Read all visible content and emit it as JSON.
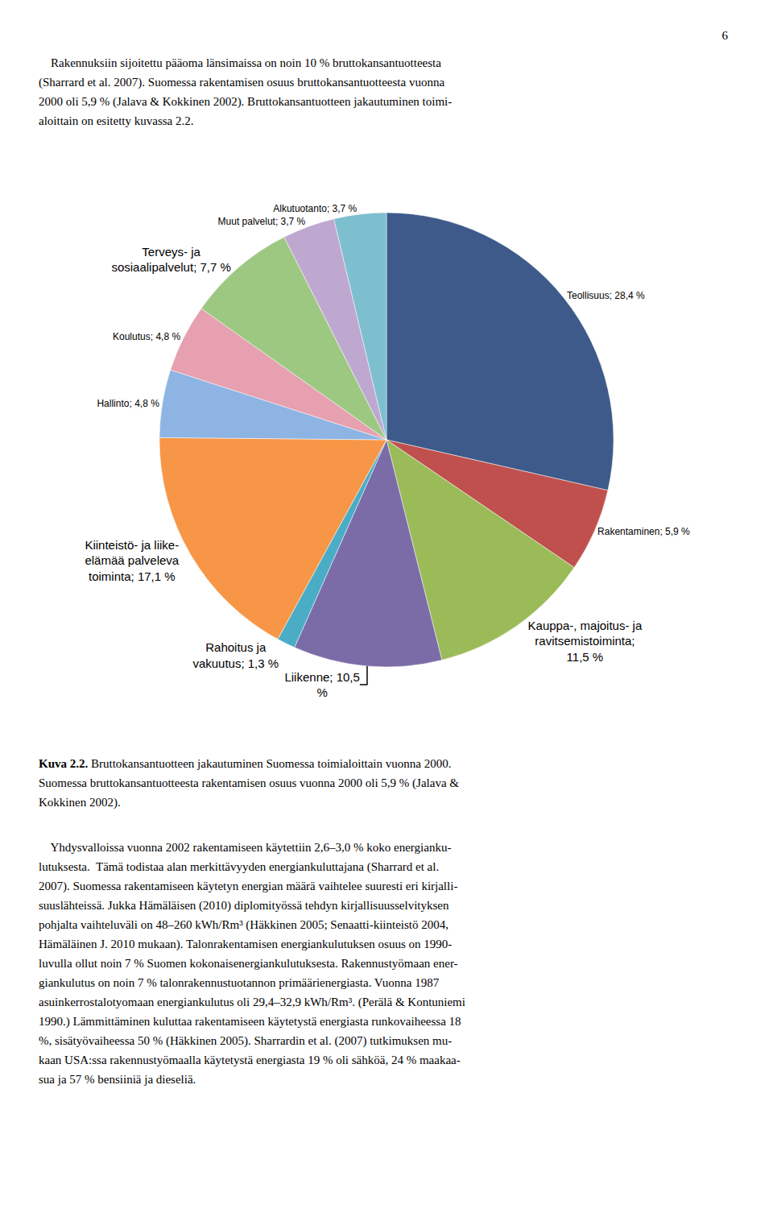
{
  "chart_data": {
    "type": "pie",
    "categories": [
      "Teollisuus; 28,4 %",
      "Rakentaminen; 5,9 %",
      "Kauppa-, majoitus- ja\nravitsemistoiminta;\n11,5 %",
      "Liikenne; 10,5\n%",
      "Rahoitus ja\nvakuutus; 1,3 %",
      "Kiinteistö- ja liike-\nelämää palveleva\ntoiminta; 17,1 %",
      "Hallinto; 4,8 %",
      "Koulutus; 4,8 %",
      "Terveys- ja\nsosiaalipalvelut; 7,7 %",
      "Muut palvelut; 3,7 %",
      "Alkutuotanto; 3,7 %"
    ],
    "values": [
      28.4,
      5.9,
      11.5,
      10.5,
      1.3,
      17.1,
      4.8,
      4.8,
      7.7,
      3.7,
      3.7
    ],
    "colors": [
      "#3D5A8A",
      "#C0504D",
      "#9BBB59",
      "#7B6CA8",
      "#4BACC6",
      "#F79646",
      "#8EB4E3",
      "#E6A0B0",
      "#9DC882",
      "#BFA8D0",
      "#7DBFCF"
    ]
  },
  "page_number": "6",
  "intro": [
    "    Rakennuksiin sijoitettu pääoma länsimaissa on noin 10 % bruttokansantuotteesta",
    "(Sharrard et al. 2007). Suomessa rakentamisen osuus bruttokansantuotteesta vuonna",
    "2000 oli 5,9 % (Jalava & Kokkinen 2002). Bruttokansantuotteen jakautuminen toimi-",
    "aloittain on esitetty kuvassa 2.2."
  ],
  "caption_bold": "Kuva 2.2.",
  "caption_rest": " Bruttokansantuotteen jakautuminen Suomessa toimialoittain vuonna 2000.",
  "caption_lines": [
    "Suomessa bruttokansantuotteesta rakentamisen osuus vuonna 2000 oli 5,9 % (Jalava &",
    "Kokkinen 2002)."
  ],
  "body": [
    "    Yhdysvalloissa vuonna 2002 rakentamiseen käytettiin 2,6–3,0 % koko energianku-",
    "lutuksesta.  Tämä todistaa alan merkittävyyden energiankuluttajana (Sharrard et al.",
    "2007). Suomessa rakentamiseen käytetyn energian määrä vaihtelee suuresti eri kirjalli-",
    "suuslähteissä. Jukka Hämäläisen (2010) diplomityössä tehdyn kirjallisuusselvityksen",
    "pohjalta vaihteluväli on 48–260 kWh/Rm³ (Häkkinen 2005; Senaatti-kiinteistö 2004,",
    "Hämäläinen J. 2010 mukaan). Talonrakentamisen energiankulutuksen osuus on 1990-",
    "luvulla ollut noin 7 % Suomen kokonaisenergiankulutuksesta. Rakennustyömaan ener-",
    "giankulutus on noin 7 % talonrakennustuotannon primäärienergiasta. Vuonna 1987",
    "asuinkerrostalotyomaan energiankulutus oli 29,4–32,9 kWh/Rm³. (Perälä & Kontuniemi",
    "1990.) Lämmittäminen kuluttaa rakentamiseen käytetystä energiasta runkovaiheessa 18",
    "%, sisätyövaiheessa 50 % (Häkkinen 2005). Sharrardin et al. (2007) tutkimuksen mu-",
    "kaan USA:ssa rakennustyömaalla käytetystä energiasta 19 % oli sähköä, 24 % maakaa-",
    "sua ja 57 % bensiiniä ja dieseliä."
  ]
}
